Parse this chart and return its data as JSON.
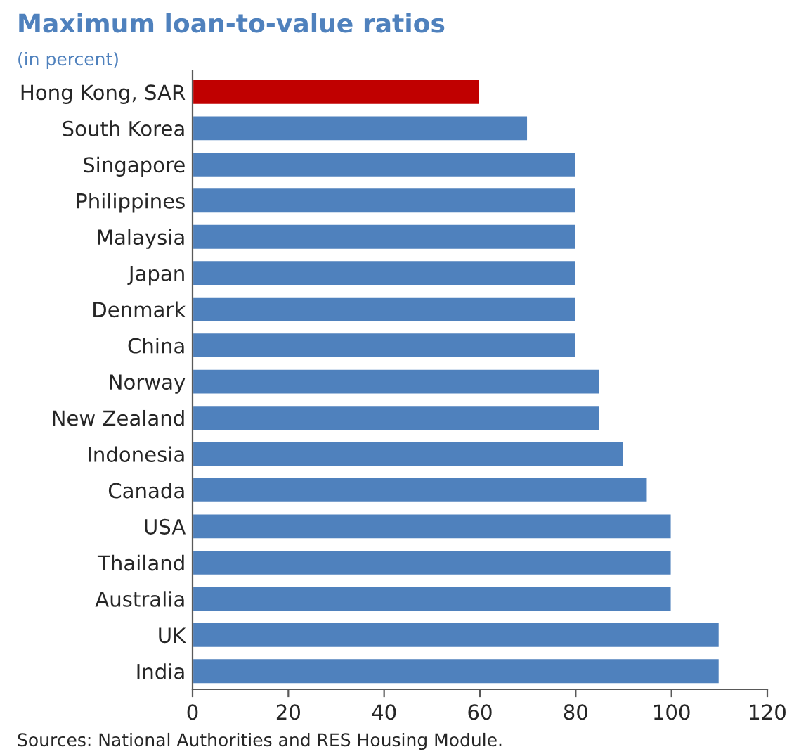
{
  "chart_data": {
    "type": "bar",
    "orientation": "horizontal",
    "title": "Maximum loan-to-value ratios",
    "subtitle": "(in percent)",
    "categories": [
      "Hong Kong, SAR",
      "South Korea",
      "Singapore",
      "Philippines",
      "Malaysia",
      "Japan",
      "Denmark",
      "China",
      "Norway",
      "New Zealand",
      "Indonesia",
      "Canada",
      "USA",
      "Thailand",
      "Australia",
      "UK",
      "India"
    ],
    "values": [
      60,
      70,
      80,
      80,
      80,
      80,
      80,
      80,
      85,
      85,
      90,
      95,
      100,
      100,
      100,
      110,
      110
    ],
    "colors": [
      "#c00000",
      "#4f81bd",
      "#4f81bd",
      "#4f81bd",
      "#4f81bd",
      "#4f81bd",
      "#4f81bd",
      "#4f81bd",
      "#4f81bd",
      "#4f81bd",
      "#4f81bd",
      "#4f81bd",
      "#4f81bd",
      "#4f81bd",
      "#4f81bd",
      "#4f81bd",
      "#4f81bd"
    ],
    "xlim": [
      0,
      120
    ],
    "xticks": [
      0,
      20,
      40,
      60,
      80,
      100,
      120
    ],
    "grid": false,
    "legend": false,
    "annotations": [
      "Sources: National Authorities and RES Housing Module."
    ]
  }
}
